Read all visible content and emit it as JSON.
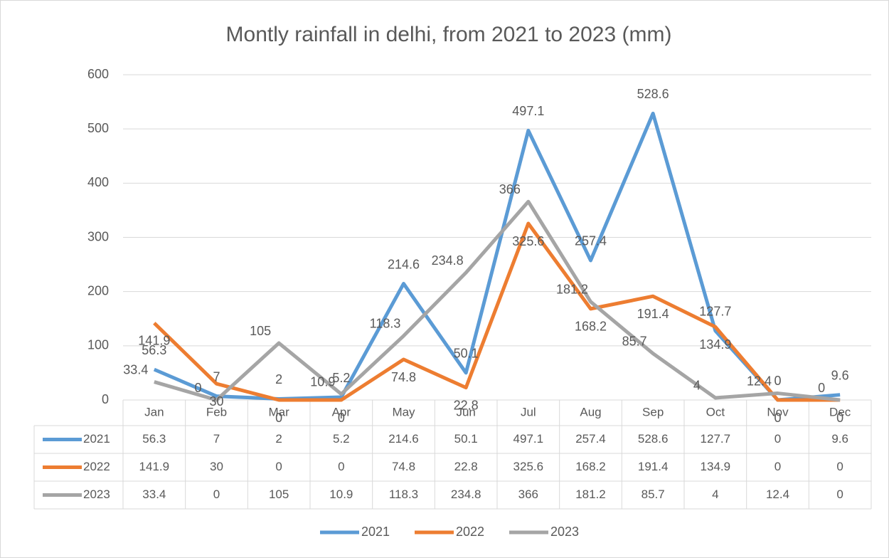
{
  "chart_data": {
    "type": "line",
    "title": "Montly rainfall in delhi, from 2021 to 2023 (mm)",
    "categories": [
      "Jan",
      "Feb",
      "Mar",
      "Apr",
      "May",
      "Jun",
      "Jul",
      "Aug",
      "Sep",
      "Oct",
      "Nov",
      "Dec"
    ],
    "series": [
      {
        "name": "2021",
        "color": "#5b9bd5",
        "values": [
          56.3,
          7,
          2,
          5.2,
          214.6,
          50.1,
          497.1,
          257.4,
          528.6,
          127.7,
          0,
          9.6
        ]
      },
      {
        "name": "2022",
        "color": "#ed7d31",
        "values": [
          141.9,
          30,
          0,
          0,
          74.8,
          22.8,
          325.6,
          168.2,
          191.4,
          134.9,
          0,
          0
        ]
      },
      {
        "name": "2023",
        "color": "#a5a5a5",
        "values": [
          33.4,
          0,
          105,
          10.9,
          118.3,
          234.8,
          366,
          181.2,
          85.7,
          4,
          12.4,
          0
        ]
      }
    ],
    "ylim": [
      0,
      600
    ],
    "yticks": [
      0,
      100,
      200,
      300,
      400,
      500,
      600
    ],
    "grid": true,
    "legend": "bottom",
    "data_table": true
  }
}
